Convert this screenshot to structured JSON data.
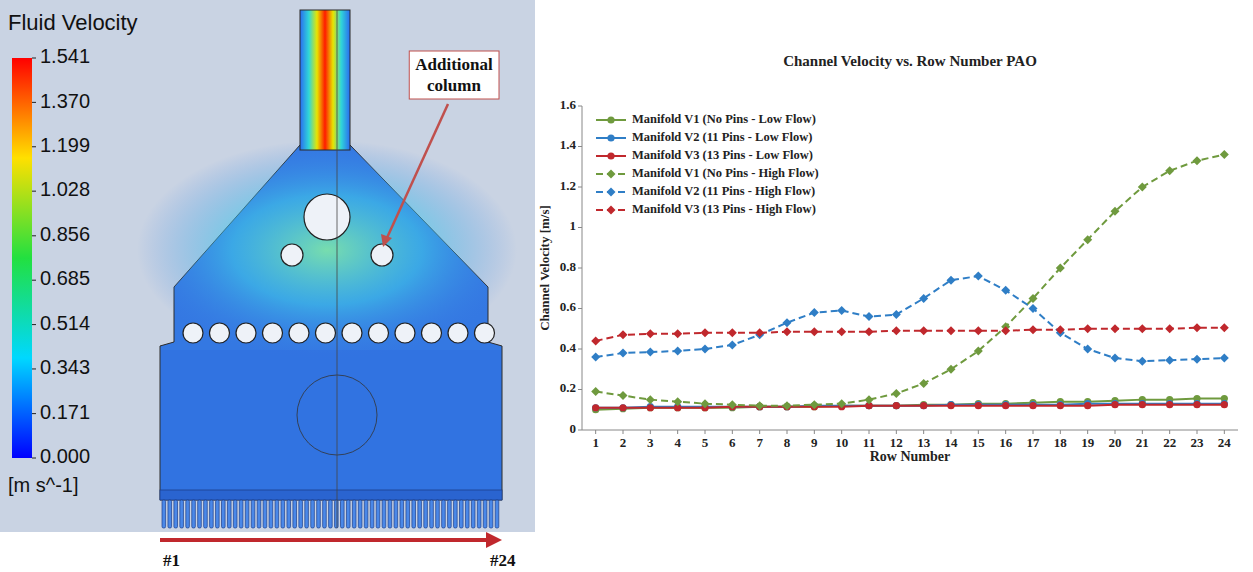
{
  "chart_data": [
    {
      "type": "contour",
      "title": "Fluid Velocity",
      "colorbar_label": "[m s^-1]",
      "colorbar_lim": [
        0,
        1.541
      ],
      "colorbar_ticks": [
        {
          "value": 0,
          "label": "0.000"
        },
        0.171,
        0.343,
        0.514,
        0.685,
        0.856,
        1.028,
        1.199,
        {
          "value": 1.37,
          "label": "1.370"
        },
        1.541
      ],
      "annotations": [
        "Additional column",
        "#1",
        "#24"
      ]
    },
    {
      "type": "line",
      "title": "Channel Velocity vs. Row Number PAO",
      "x_label": "Row Number",
      "y_label": "Channel Velocity [m/s]",
      "categories": [
        1,
        2,
        3,
        4,
        5,
        6,
        7,
        8,
        9,
        10,
        11,
        12,
        13,
        14,
        15,
        16,
        17,
        18,
        19,
        20,
        21,
        22,
        23,
        24
      ],
      "ylim": [
        0,
        1.6
      ],
      "yticks": [
        0,
        0.2,
        0.4,
        0.6,
        0.8,
        1,
        1.2,
        1.4,
        1.6
      ],
      "grid": false,
      "legend": "upper left",
      "series": [
        {
          "name": "Manifold V1 (No Pins - Low Flow)",
          "color": "#6f9a3e",
          "marker": "circle",
          "line_style": "solid",
          "values": [
            0.1,
            0.105,
            0.11,
            0.11,
            0.11,
            0.11,
            0.115,
            0.115,
            0.115,
            0.12,
            0.12,
            0.12,
            0.125,
            0.125,
            0.13,
            0.13,
            0.135,
            0.14,
            0.14,
            0.145,
            0.15,
            0.15,
            0.155,
            0.155
          ]
        },
        {
          "name": "Manifold V2 (11 Pins -  Low Flow)",
          "color": "#2f7ec6",
          "marker": "circle",
          "line_style": "solid",
          "values": [
            0.11,
            0.11,
            0.115,
            0.115,
            0.115,
            0.115,
            0.115,
            0.115,
            0.12,
            0.12,
            0.12,
            0.12,
            0.12,
            0.125,
            0.125,
            0.125,
            0.125,
            0.125,
            0.13,
            0.13,
            0.13,
            0.13,
            0.13,
            0.13
          ]
        },
        {
          "name": "Manifold V3 (13 Pins -  Low Flow)",
          "color": "#c0282d",
          "marker": "circle",
          "line_style": "solid",
          "values": [
            0.11,
            0.11,
            0.11,
            0.11,
            0.11,
            0.115,
            0.115,
            0.115,
            0.115,
            0.115,
            0.12,
            0.12,
            0.12,
            0.12,
            0.12,
            0.12,
            0.12,
            0.12,
            0.12,
            0.125,
            0.125,
            0.125,
            0.125,
            0.125
          ]
        },
        {
          "name": "Manifold V1 (No Pins - High Flow)",
          "color": "#6f9a3e",
          "marker": "diamond",
          "line_style": "dashed",
          "values": [
            0.19,
            0.17,
            0.15,
            0.14,
            0.13,
            0.125,
            0.12,
            0.12,
            0.125,
            0.13,
            0.15,
            0.18,
            0.23,
            0.3,
            0.39,
            0.51,
            0.65,
            0.8,
            0.94,
            1.08,
            1.2,
            1.28,
            1.33,
            1.36
          ]
        },
        {
          "name": "Manifold V2 (11 Pins - High Flow)",
          "color": "#2f7ec6",
          "marker": "diamond",
          "line_style": "dashed",
          "values": [
            0.36,
            0.38,
            0.385,
            0.39,
            0.4,
            0.42,
            0.47,
            0.53,
            0.58,
            0.59,
            0.56,
            0.57,
            0.65,
            0.74,
            0.76,
            0.69,
            0.6,
            0.48,
            0.4,
            0.355,
            0.34,
            0.345,
            0.35,
            0.355
          ]
        },
        {
          "name": "Manifold V3 (13 Pins - High Flow)",
          "color": "#c0282d",
          "marker": "diamond",
          "line_style": "dashed",
          "values": [
            0.44,
            0.47,
            0.475,
            0.475,
            0.48,
            0.48,
            0.48,
            0.485,
            0.485,
            0.485,
            0.485,
            0.49,
            0.49,
            0.49,
            0.49,
            0.49,
            0.495,
            0.495,
            0.5,
            0.5,
            0.5,
            0.5,
            0.505,
            0.505
          ]
        }
      ]
    }
  ]
}
